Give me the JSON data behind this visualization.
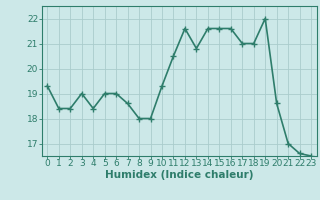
{
  "x": [
    0,
    1,
    2,
    3,
    4,
    5,
    6,
    7,
    8,
    9,
    10,
    11,
    12,
    13,
    14,
    15,
    16,
    17,
    18,
    19,
    20,
    21,
    22,
    23
  ],
  "y": [
    19.3,
    18.4,
    18.4,
    19.0,
    18.4,
    19.0,
    19.0,
    18.6,
    18.0,
    18.0,
    19.3,
    20.5,
    21.6,
    20.8,
    21.6,
    21.6,
    21.6,
    21.0,
    21.0,
    22.0,
    18.6,
    17.0,
    16.6,
    16.5
  ],
  "xlabel": "Humidex (Indice chaleur)",
  "ylim": [
    16.5,
    22.5
  ],
  "yticks": [
    17,
    18,
    19,
    20,
    21,
    22
  ],
  "xlim": [
    -0.5,
    23.5
  ],
  "xticks": [
    0,
    1,
    2,
    3,
    4,
    5,
    6,
    7,
    8,
    9,
    10,
    11,
    12,
    13,
    14,
    15,
    16,
    17,
    18,
    19,
    20,
    21,
    22,
    23
  ],
  "line_color": "#2e7d6b",
  "marker": "+",
  "bg_color": "#cce8e8",
  "grid_color": "#aacccc",
  "axis_color": "#2e7d6b",
  "tick_label_color": "#2e7d6b",
  "xlabel_color": "#2e7d6b",
  "xlabel_fontsize": 7.5,
  "tick_fontsize": 6.5,
  "linewidth": 1.2,
  "markersize": 4,
  "markeredgewidth": 1.0
}
